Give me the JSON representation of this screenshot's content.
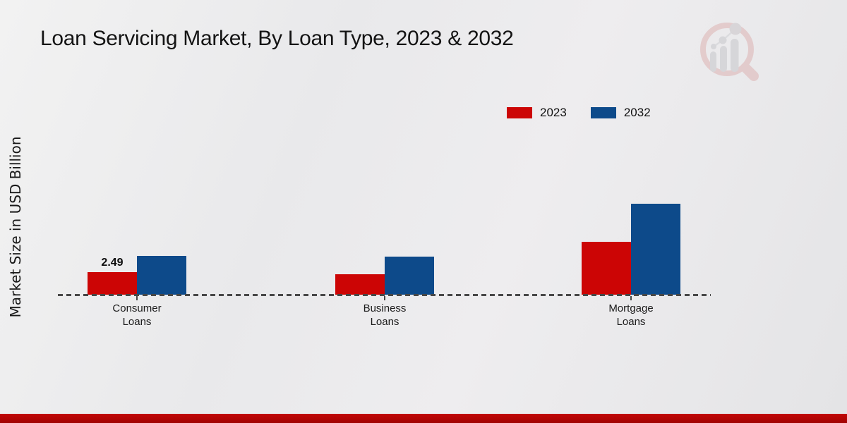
{
  "page": {
    "title": "Loan Servicing Market, By Loan Type, 2023 & 2032",
    "ylabel": "Market Size in USD Billion"
  },
  "legend": {
    "items": [
      {
        "label": "2023",
        "color": "#cc0505"
      },
      {
        "label": "2032",
        "color": "#0d4a8a"
      }
    ]
  },
  "categories": [
    {
      "line1": "Consumer",
      "line2": "Loans"
    },
    {
      "line1": "Business",
      "line2": "Loans"
    },
    {
      "line1": "Mortgage",
      "line2": "Loans"
    }
  ],
  "annotation": {
    "text": "2.49"
  },
  "colors": {
    "series_2023": "#cc0505",
    "series_2032": "#0d4a8a",
    "baseline": "#474747",
    "footer_strip": "#b20404",
    "background": "#e9e9eb"
  },
  "watermark": {
    "name": "market-research-magnifier-logo"
  },
  "chart_data": {
    "type": "bar",
    "title": "Loan Servicing Market, By Loan Type, 2023 & 2032",
    "ylabel": "Market Size in USD Billion",
    "categories": [
      "Consumer Loans",
      "Business Loans",
      "Mortgage Loans"
    ],
    "series": [
      {
        "name": "2023",
        "color": "#cc0505",
        "values": [
          2.49,
          2.25,
          5.85
        ]
      },
      {
        "name": "2032",
        "color": "#0d4a8a",
        "values": [
          4.3,
          4.2,
          10.0
        ]
      }
    ],
    "data_labels": [
      {
        "series": "2023",
        "category": "Consumer Loans",
        "text": "2.49"
      }
    ],
    "ylim": [
      0,
      10.5
    ],
    "grid": false,
    "legend_position": "top-right",
    "x_axis_style": "dashed-baseline-only"
  }
}
